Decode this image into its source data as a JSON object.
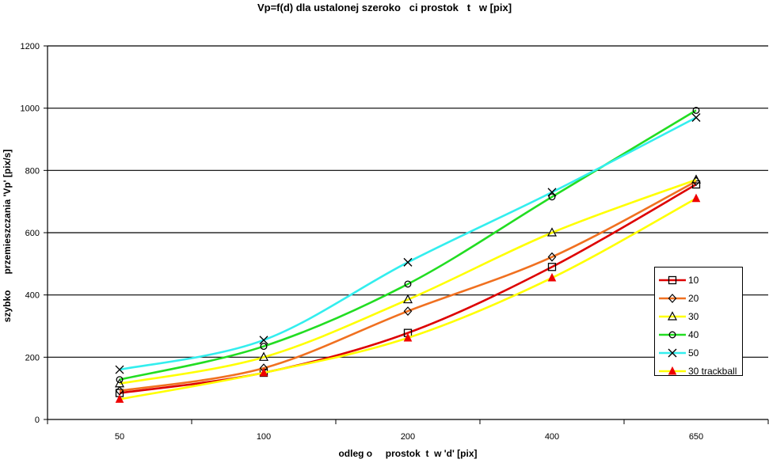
{
  "chart_data": {
    "type": "line",
    "title": "Vp=f(d) dla ustalonej szeroko   ci prostok   t   w [pix]",
    "xlabel": "odleg o     prostok  t  w 'd' [pix]",
    "ylabel": "szybko      przemieszczania 'Vp' [pix/s]",
    "categories": [
      "50",
      "100",
      "200",
      "400",
      "650"
    ],
    "ylim": [
      0,
      1200
    ],
    "yticks": [
      "0",
      "200",
      "400",
      "600",
      "800",
      "1000",
      "1200"
    ],
    "grid": true,
    "legend_position": "right",
    "series": [
      {
        "name": "10",
        "color": "#dd0000",
        "marker": "square",
        "values": [
          85,
          150,
          278,
          490,
          755
        ]
      },
      {
        "name": "20",
        "color": "#f07020",
        "marker": "diamond",
        "values": [
          92,
          165,
          348,
          522,
          765
        ]
      },
      {
        "name": "30",
        "color": "#ffff00",
        "marker": "triangle",
        "values": [
          115,
          200,
          385,
          600,
          770
        ]
      },
      {
        "name": "40",
        "color": "#22dd22",
        "marker": "circle",
        "values": [
          128,
          235,
          435,
          715,
          993
        ]
      },
      {
        "name": "50",
        "color": "#33eeee",
        "marker": "x",
        "values": [
          160,
          255,
          505,
          730,
          970
        ]
      },
      {
        "name": "30 trackball",
        "color": "#ffff00",
        "marker": "filled-triangle",
        "marker_color": "#ee0000",
        "values": [
          65,
          150,
          262,
          455,
          710
        ]
      }
    ]
  }
}
